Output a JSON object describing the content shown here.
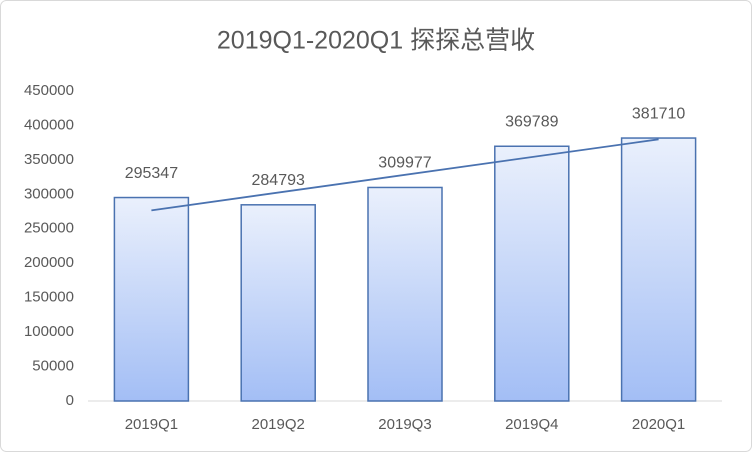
{
  "chart_data": {
    "type": "bar",
    "title": "2019Q1-2020Q1 探探总营收",
    "categories": [
      "2019Q1",
      "2019Q2",
      "2019Q3",
      "2019Q4",
      "2020Q1"
    ],
    "values": [
      295347,
      284793,
      309977,
      369789,
      381710
    ],
    "color": "#a3bef5",
    "edge_color": "#4a72b0",
    "trendline": true,
    "trendline_color": "#4a72b0",
    "ylim": [
      0,
      450000
    ],
    "yticks": [
      0,
      50000,
      100000,
      150000,
      200000,
      250000,
      300000,
      350000,
      400000,
      450000
    ],
    "grid": false
  }
}
